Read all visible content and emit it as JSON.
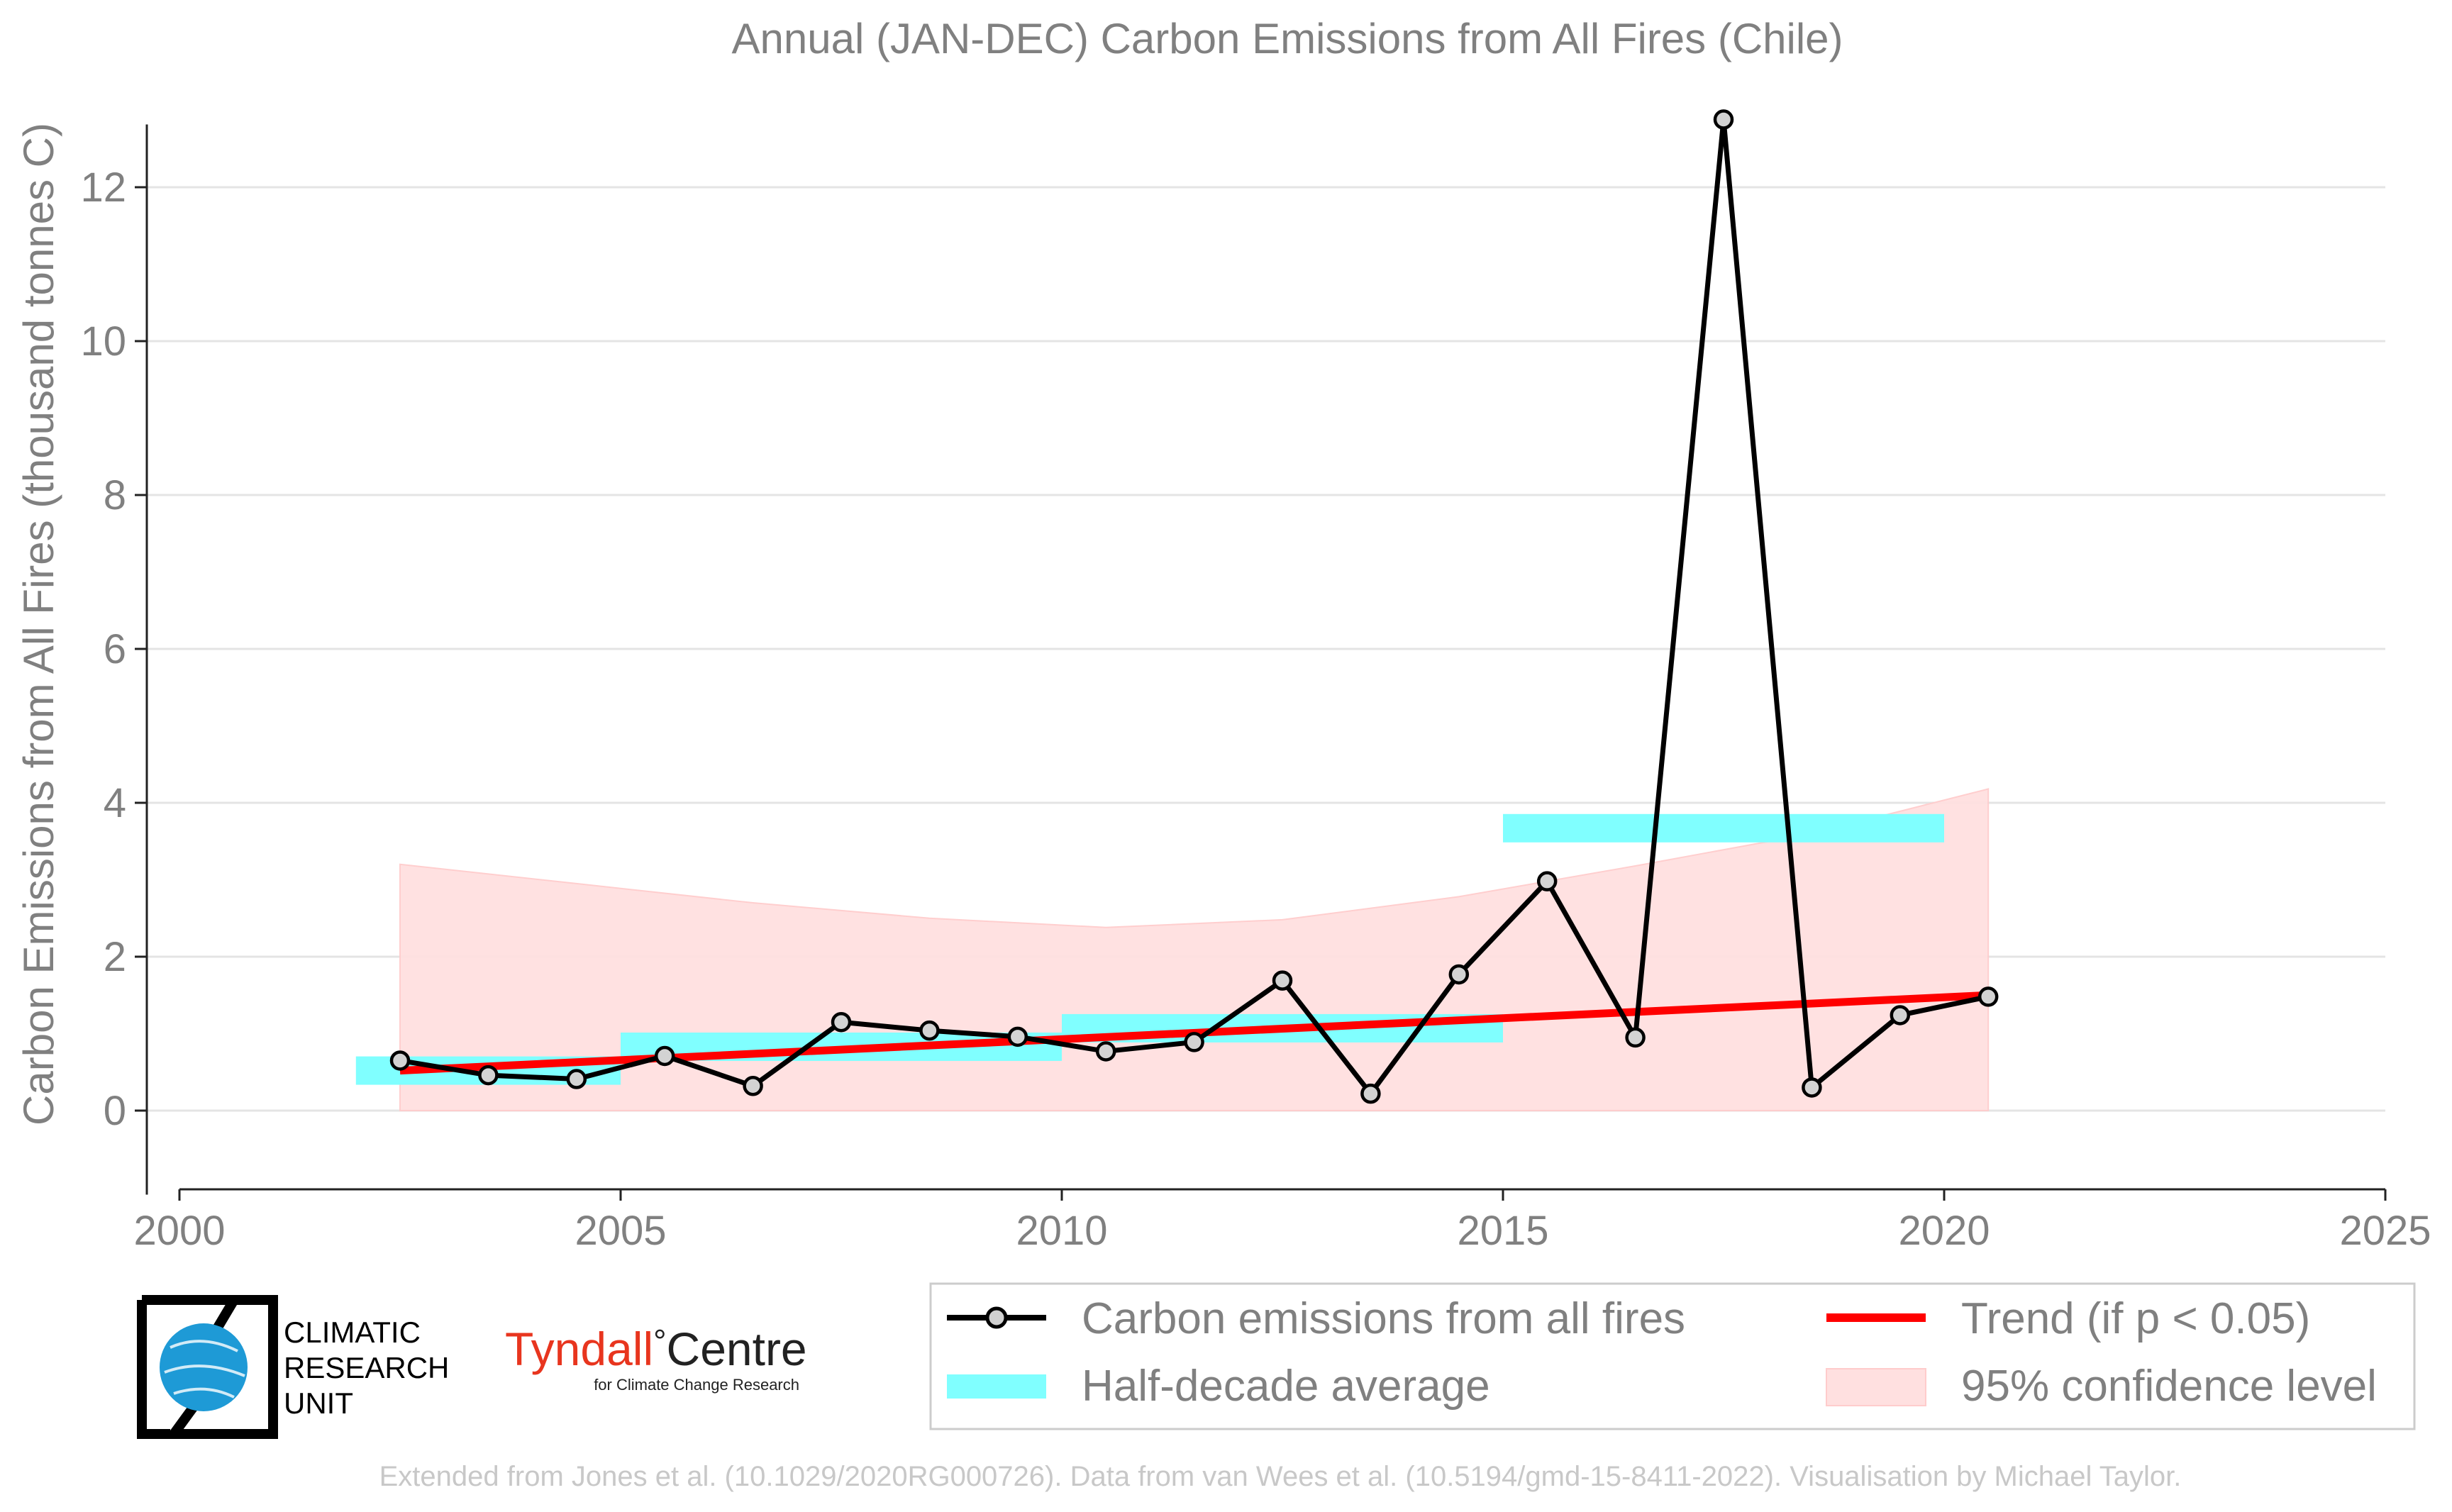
{
  "chart_data": {
    "type": "line",
    "title": "Annual (JAN-DEC) Carbon Emissions from All Fires (Chile)",
    "xlabel": "",
    "ylabel": "Carbon Emissions from All Fires (thousand tonnes C)",
    "xlim": [
      2000,
      2025
    ],
    "ylim": [
      -1,
      13
    ],
    "xticks": [
      2000,
      2005,
      2010,
      2015,
      2020,
      2025
    ],
    "yticks": [
      0,
      2,
      4,
      6,
      8,
      10,
      12
    ],
    "grid": "horizontal",
    "legend_position": "bottom-right",
    "series": [
      {
        "name": "Carbon emissions from all fires",
        "type": "line",
        "color": "#000000",
        "x": [
          2002.5,
          2003.5,
          2004.5,
          2005.5,
          2006.5,
          2007.5,
          2008.5,
          2009.5,
          2010.5,
          2011.5,
          2012.5,
          2013.5,
          2014.5,
          2015.5,
          2016.5,
          2017.5,
          2018.5,
          2019.5,
          2020.5
        ],
        "y": [
          0.65,
          0.46,
          0.41,
          0.71,
          0.32,
          1.15,
          1.04,
          0.96,
          0.77,
          0.89,
          1.69,
          0.22,
          1.77,
          2.98,
          0.95,
          12.88,
          0.3,
          1.24,
          1.48
        ]
      },
      {
        "name": "Half-decade average",
        "type": "bar-segments",
        "color": "#80ffff",
        "segments": [
          {
            "x0": 2002,
            "x1": 2005,
            "y": 0.52
          },
          {
            "x0": 2005,
            "x1": 2010,
            "y": 0.83
          },
          {
            "x0": 2010,
            "x1": 2015,
            "y": 1.07
          },
          {
            "x0": 2015,
            "x1": 2020,
            "y": 3.67
          }
        ]
      },
      {
        "name": "Trend (if p < 0.05)",
        "type": "line",
        "color": "#ff0000",
        "x": [
          2002.5,
          2020.5
        ],
        "y": [
          0.52,
          1.5
        ]
      },
      {
        "name": "95% confidence level",
        "type": "area",
        "color": "#ffe0e0",
        "x": [
          2002.5,
          2004.5,
          2006.5,
          2008.5,
          2010.5,
          2012.5,
          2014.5,
          2016.5,
          2018.5,
          2020.5
        ],
        "upper": [
          3.2,
          2.95,
          2.7,
          2.5,
          2.38,
          2.48,
          2.78,
          3.18,
          3.6,
          4.18
        ],
        "lower": [
          0,
          0,
          0,
          0,
          0,
          0,
          0,
          0,
          0,
          0
        ]
      }
    ]
  },
  "logos": {
    "cru": [
      "CLIMATIC",
      "RESEARCH",
      "UNIT"
    ],
    "tyndall_main": "Tyndall",
    "tyndall_degree": "°",
    "tyndall_centre": "Centre",
    "tyndall_sub": "for Climate Change Research"
  },
  "footer": "Extended from Jones et al. (10.1029/2020RG000726). Data from van Wees et al. (10.5194/gmd-15-8411-2022). Visualisation by Michael Taylor."
}
